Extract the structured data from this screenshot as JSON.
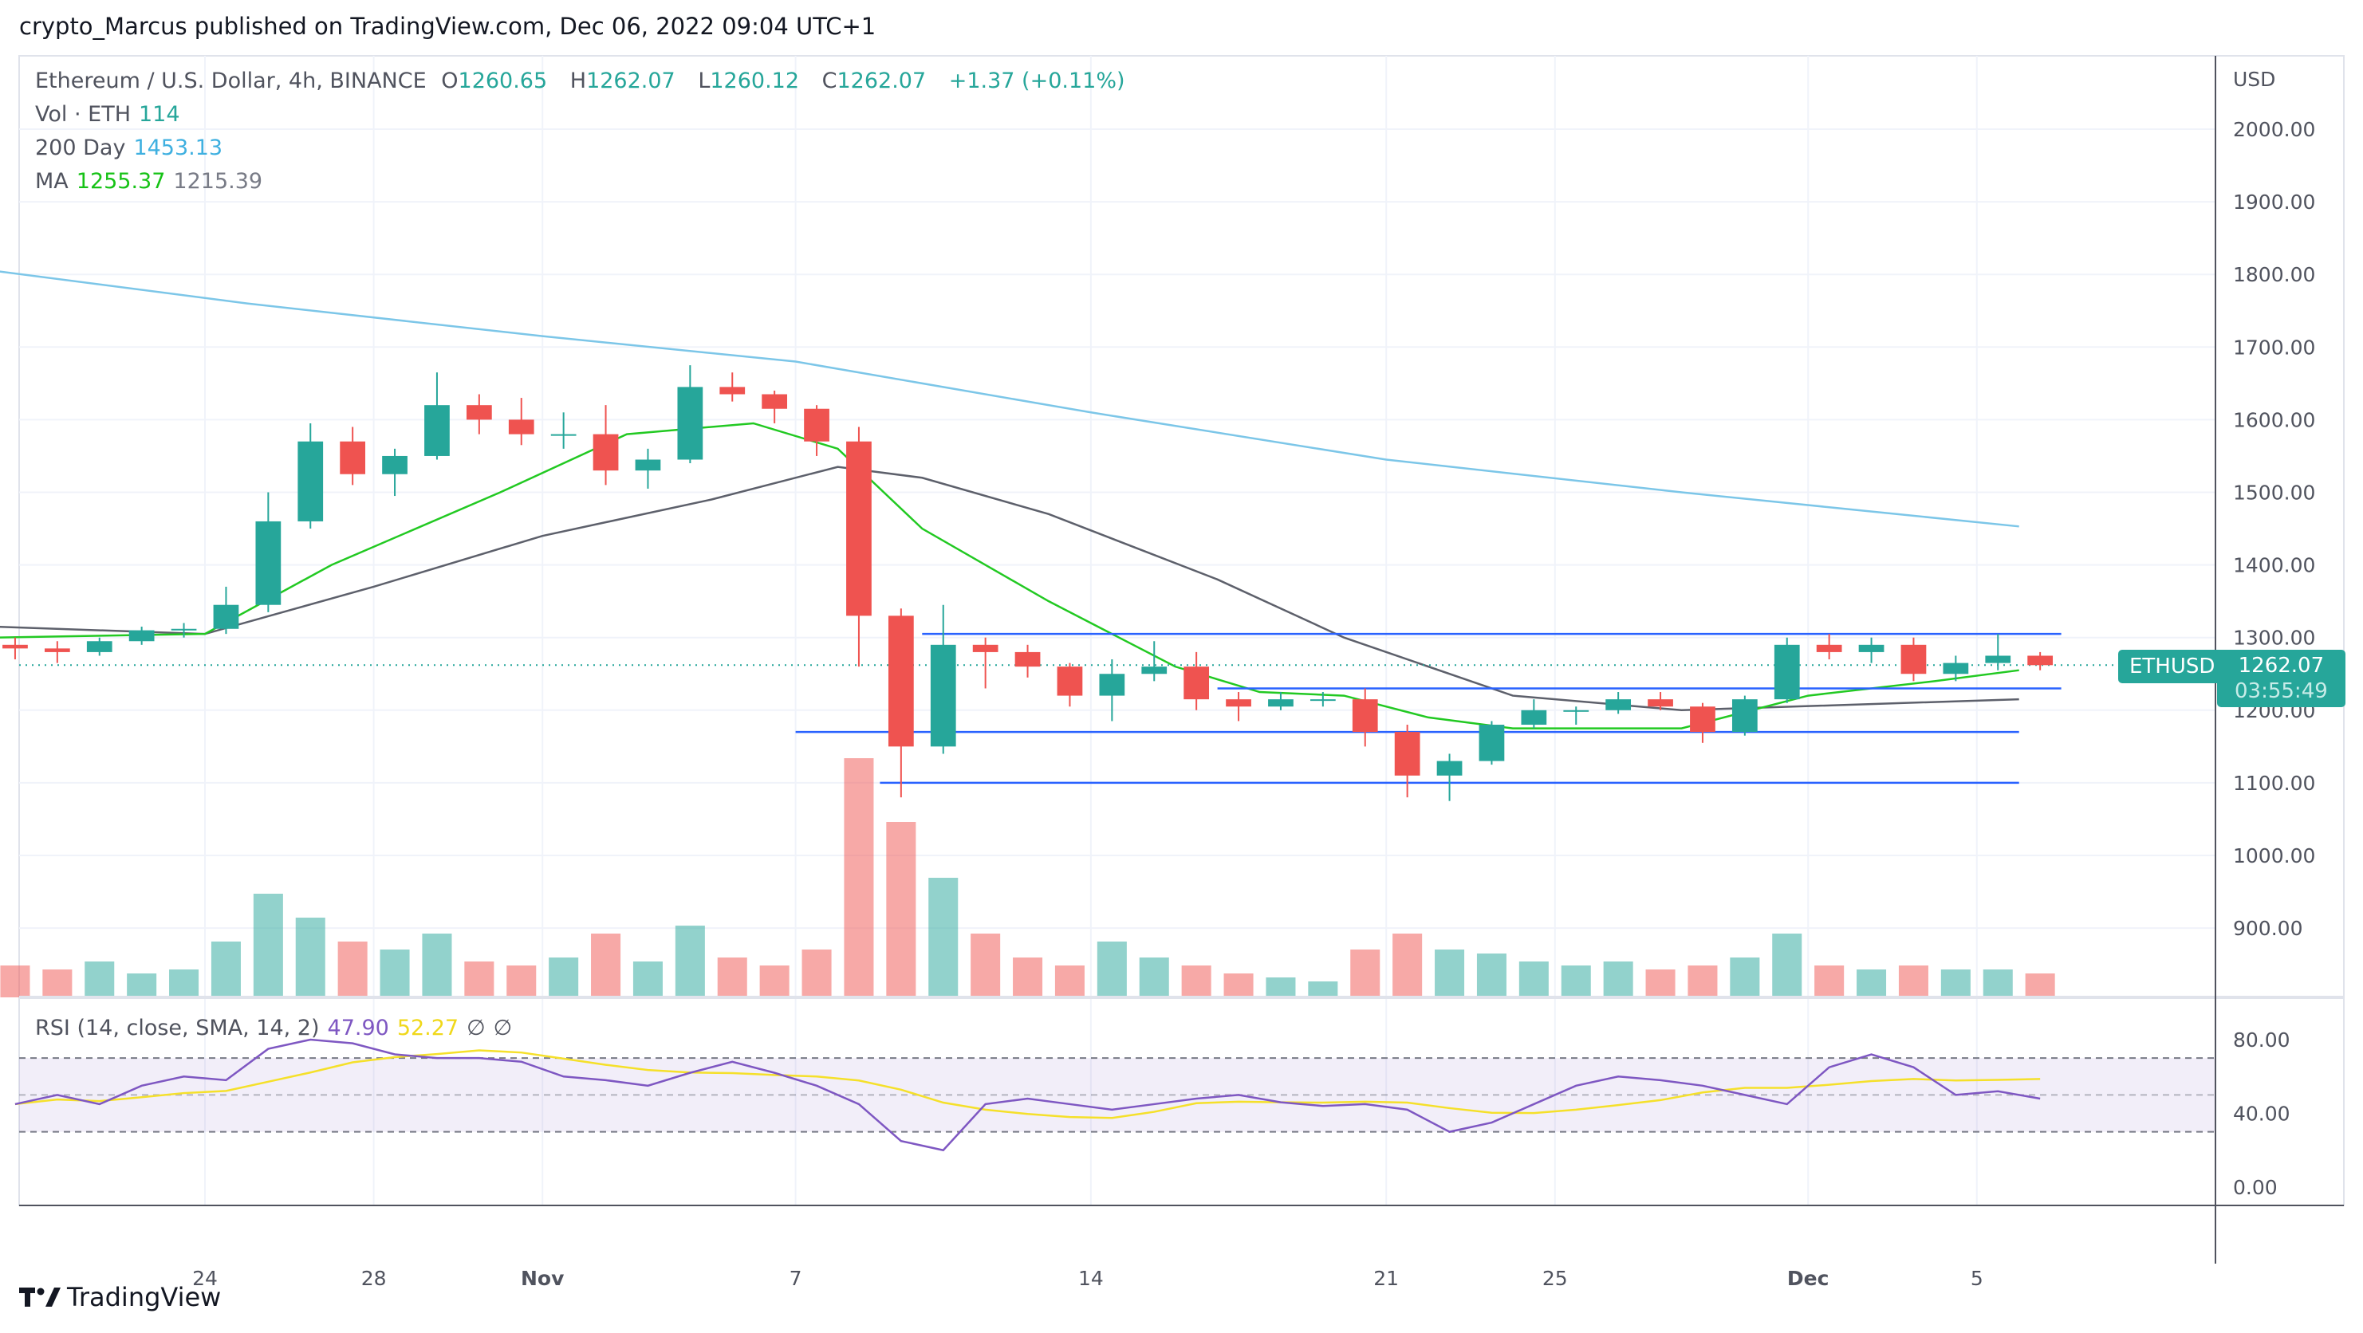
{
  "header": {
    "published": "crypto_Marcus published on TradingView.com, Dec 06, 2022 09:04 UTC+1"
  },
  "legend": {
    "symbol": "Ethereum / U.S. Dollar, 4h, BINANCE",
    "o_label": "O",
    "o": "1260.65",
    "h_label": "H",
    "h": "1262.07",
    "l_label": "L",
    "l": "1260.12",
    "c_label": "C",
    "c": "1262.07",
    "change": "+1.37 (+0.11%)",
    "vol_label": "Vol · ETH",
    "vol": "114",
    "day200_label": "200 Day",
    "day200": "1453.13",
    "ma_label": "MA",
    "ma1": "1255.37",
    "ma2": "1215.39",
    "rsi_label": "RSI (14, close, SMA, 14, 2)",
    "rsi": "47.90",
    "rsi_sma": "52.27",
    "rsi_na1": "∅",
    "rsi_na2": "∅"
  },
  "price_scale": {
    "currency": "USD",
    "labels": [
      "2000.00",
      "1900.00",
      "1800.00",
      "1700.00",
      "1600.00",
      "1500.00",
      "1400.00",
      "1300.00",
      "1200.00",
      "1100.00",
      "1000.00",
      "900.00"
    ]
  },
  "rsi_scale": {
    "labels": [
      "80.00",
      "40.00",
      "0.00"
    ]
  },
  "last_price": {
    "symbol": "ETHUSD",
    "price": "1262.07",
    "countdown": "03:55:49"
  },
  "brand": {
    "name": "TradingView"
  },
  "colors": {
    "up": "#26a69a",
    "down": "#ef5350",
    "day200": "#7cc6e8",
    "ma_fast": "#22c922",
    "ma_slow": "#5d606b",
    "levels": "#2962ff",
    "rsi": "#7e57c2",
    "rsi_sma": "#f5e02a"
  },
  "chart_data": {
    "type": "candlestick",
    "title": "Ethereum / U.S. Dollar, 4h, BINANCE",
    "ylim": [
      820,
      2100
    ],
    "x": [
      "2022-10-19",
      "2022-10-20",
      "2022-10-21",
      "2022-10-22",
      "2022-10-23",
      "2022-10-24",
      "2022-10-25",
      "2022-10-26",
      "2022-10-27",
      "2022-10-28",
      "2022-10-29",
      "2022-10-30",
      "2022-10-31",
      "2022-11-01",
      "2022-11-02",
      "2022-11-03",
      "2022-11-04",
      "2022-11-05",
      "2022-11-06",
      "2022-11-07",
      "2022-11-08",
      "2022-11-09",
      "2022-11-10",
      "2022-11-11",
      "2022-11-12",
      "2022-11-13",
      "2022-11-14",
      "2022-11-15",
      "2022-11-16",
      "2022-11-17",
      "2022-11-18",
      "2022-11-19",
      "2022-11-20",
      "2022-11-21",
      "2022-11-22",
      "2022-11-23",
      "2022-11-24",
      "2022-11-25",
      "2022-11-26",
      "2022-11-27",
      "2022-11-28",
      "2022-11-29",
      "2022-11-30",
      "2022-12-01",
      "2022-12-02",
      "2022-12-03",
      "2022-12-04",
      "2022-12-05",
      "2022-12-06"
    ],
    "ohlc": [
      [
        1290,
        1300,
        1270,
        1285
      ],
      [
        1285,
        1295,
        1265,
        1280
      ],
      [
        1280,
        1300,
        1275,
        1295
      ],
      [
        1295,
        1315,
        1290,
        1310
      ],
      [
        1310,
        1320,
        1300,
        1312
      ],
      [
        1312,
        1370,
        1305,
        1345
      ],
      [
        1345,
        1500,
        1335,
        1460
      ],
      [
        1460,
        1595,
        1450,
        1570
      ],
      [
        1570,
        1590,
        1510,
        1525
      ],
      [
        1525,
        1560,
        1495,
        1550
      ],
      [
        1550,
        1665,
        1545,
        1620
      ],
      [
        1620,
        1635,
        1580,
        1600
      ],
      [
        1600,
        1630,
        1565,
        1580
      ],
      [
        1580,
        1610,
        1560,
        1580
      ],
      [
        1580,
        1620,
        1510,
        1530
      ],
      [
        1530,
        1560,
        1505,
        1545
      ],
      [
        1545,
        1675,
        1540,
        1645
      ],
      [
        1645,
        1665,
        1625,
        1635
      ],
      [
        1635,
        1640,
        1595,
        1615
      ],
      [
        1615,
        1620,
        1550,
        1570
      ],
      [
        1570,
        1590,
        1260,
        1330
      ],
      [
        1330,
        1340,
        1080,
        1150
      ],
      [
        1150,
        1345,
        1140,
        1290
      ],
      [
        1290,
        1300,
        1230,
        1280
      ],
      [
        1280,
        1290,
        1245,
        1260
      ],
      [
        1260,
        1265,
        1205,
        1220
      ],
      [
        1220,
        1270,
        1185,
        1250
      ],
      [
        1250,
        1295,
        1240,
        1260
      ],
      [
        1260,
        1280,
        1200,
        1215
      ],
      [
        1215,
        1225,
        1185,
        1205
      ],
      [
        1205,
        1225,
        1200,
        1215
      ],
      [
        1215,
        1225,
        1205,
        1215
      ],
      [
        1215,
        1230,
        1150,
        1170
      ],
      [
        1170,
        1180,
        1080,
        1110
      ],
      [
        1110,
        1140,
        1075,
        1130
      ],
      [
        1130,
        1185,
        1125,
        1180
      ],
      [
        1180,
        1215,
        1175,
        1200
      ],
      [
        1200,
        1205,
        1180,
        1200
      ],
      [
        1200,
        1225,
        1195,
        1215
      ],
      [
        1215,
        1225,
        1200,
        1205
      ],
      [
        1205,
        1210,
        1155,
        1170
      ],
      [
        1170,
        1220,
        1165,
        1215
      ],
      [
        1215,
        1300,
        1210,
        1290
      ],
      [
        1290,
        1305,
        1270,
        1280
      ],
      [
        1280,
        1300,
        1265,
        1290
      ],
      [
        1290,
        1300,
        1240,
        1250
      ],
      [
        1250,
        1275,
        1240,
        1265
      ],
      [
        1265,
        1305,
        1255,
        1275
      ],
      [
        1275,
        1280,
        1255,
        1262
      ]
    ],
    "volume": [
      40,
      35,
      45,
      30,
      35,
      70,
      130,
      100,
      70,
      60,
      80,
      45,
      40,
      50,
      80,
      45,
      90,
      50,
      40,
      60,
      300,
      220,
      150,
      80,
      50,
      40,
      70,
      50,
      40,
      30,
      25,
      20,
      60,
      80,
      60,
      55,
      45,
      40,
      45,
      35,
      40,
      50,
      80,
      40,
      35,
      40,
      35,
      35,
      30
    ],
    "day200": [
      [
        "2022-10-19",
        1805
      ],
      [
        "2022-10-25",
        1760
      ],
      [
        "2022-11-01",
        1715
      ],
      [
        "2022-11-07",
        1680
      ],
      [
        "2022-11-14",
        1610
      ],
      [
        "2022-11-21",
        1545
      ],
      [
        "2022-11-28",
        1500
      ],
      [
        "2022-12-06",
        1453
      ]
    ],
    "ma_fast": [
      [
        "2022-10-19",
        1300
      ],
      [
        "2022-10-24",
        1305
      ],
      [
        "2022-10-27",
        1400
      ],
      [
        "2022-10-31",
        1500
      ],
      [
        "2022-11-03",
        1580
      ],
      [
        "2022-11-06",
        1595
      ],
      [
        "2022-11-08",
        1560
      ],
      [
        "2022-11-10",
        1450
      ],
      [
        "2022-11-13",
        1350
      ],
      [
        "2022-11-16",
        1260
      ],
      [
        "2022-11-18",
        1225
      ],
      [
        "2022-11-20",
        1220
      ],
      [
        "2022-11-22",
        1190
      ],
      [
        "2022-11-24",
        1175
      ],
      [
        "2022-11-28",
        1175
      ],
      [
        "2022-12-01",
        1220
      ],
      [
        "2022-12-04",
        1240
      ],
      [
        "2022-12-06",
        1255
      ]
    ],
    "ma_slow": [
      [
        "2022-10-19",
        1315
      ],
      [
        "2022-10-24",
        1305
      ],
      [
        "2022-10-28",
        1370
      ],
      [
        "2022-11-01",
        1440
      ],
      [
        "2022-11-05",
        1490
      ],
      [
        "2022-11-08",
        1535
      ],
      [
        "2022-11-10",
        1520
      ],
      [
        "2022-11-13",
        1470
      ],
      [
        "2022-11-17",
        1380
      ],
      [
        "2022-11-20",
        1300
      ],
      [
        "2022-11-24",
        1220
      ],
      [
        "2022-11-28",
        1200
      ],
      [
        "2022-12-06",
        1215
      ]
    ],
    "levels": [
      {
        "price": 1305,
        "from": "2022-11-10",
        "to": "2022-12-07"
      },
      {
        "price": 1230,
        "from": "2022-11-17",
        "to": "2022-12-07"
      },
      {
        "price": 1170,
        "from": "2022-11-07",
        "to": "2022-12-06"
      },
      {
        "price": 1100,
        "from": "2022-11-09",
        "to": "2022-12-06"
      }
    ],
    "rsi": [
      45,
      50,
      45,
      55,
      60,
      58,
      75,
      80,
      78,
      72,
      70,
      70,
      68,
      60,
      58,
      55,
      62,
      68,
      62,
      55,
      45,
      25,
      20,
      45,
      48,
      45,
      42,
      45,
      48,
      50,
      46,
      44,
      45,
      42,
      30,
      35,
      45,
      55,
      60,
      58,
      55,
      50,
      45,
      65,
      72,
      65,
      50,
      52,
      48
    ],
    "rsi_bands": [
      30,
      50,
      70
    ],
    "x_ticks": [
      {
        "label": "24",
        "date": "2022-10-24"
      },
      {
        "label": "28",
        "date": "2022-10-28"
      },
      {
        "label": "Nov",
        "date": "2022-11-01"
      },
      {
        "label": "7",
        "date": "2022-11-07"
      },
      {
        "label": "14",
        "date": "2022-11-14"
      },
      {
        "label": "21",
        "date": "2022-11-21"
      },
      {
        "label": "25",
        "date": "2022-11-25"
      },
      {
        "label": "Dec",
        "date": "2022-12-01"
      },
      {
        "label": "5",
        "date": "2022-12-05"
      }
    ]
  }
}
